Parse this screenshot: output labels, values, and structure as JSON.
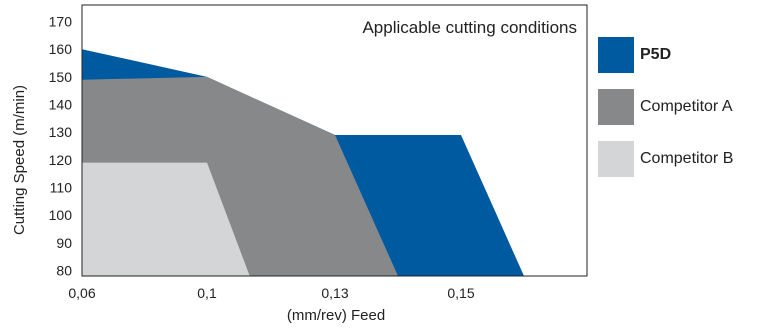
{
  "chart_data": {
    "type": "area",
    "title": "",
    "annotation": "Applicable cutting conditions",
    "xlabel": "(mm/rev) Feed",
    "ylabel": "Cutting Speed (m/min)",
    "x_ticks": [
      {
        "value": 0.06,
        "label": "0,06"
      },
      {
        "value": 0.1,
        "label": "0,1"
      },
      {
        "value": 0.13,
        "label": "0,13"
      },
      {
        "value": 0.15,
        "label": "0,15"
      }
    ],
    "y_ticks": [
      80,
      90,
      100,
      110,
      120,
      130,
      140,
      150,
      160,
      170
    ],
    "ylim": [
      78,
      176
    ],
    "grid": false,
    "legend_position": "right",
    "series": [
      {
        "name": "P5D",
        "color": "#005aa0",
        "points": [
          [
            0.06,
            78
          ],
          [
            0.06,
            160
          ],
          [
            0.1,
            150
          ],
          [
            0.13,
            129
          ],
          [
            0.15,
            129
          ],
          [
            0.16,
            78
          ]
        ]
      },
      {
        "name": "Competitor A",
        "color": "#87888a",
        "points": [
          [
            0.06,
            78
          ],
          [
            0.06,
            149
          ],
          [
            0.1,
            150
          ],
          [
            0.13,
            129
          ],
          [
            0.14,
            78
          ]
        ]
      },
      {
        "name": "Competitor B",
        "color": "#d4d5d7",
        "points": [
          [
            0.06,
            78
          ],
          [
            0.06,
            119
          ],
          [
            0.1,
            119
          ],
          [
            0.11,
            78
          ]
        ]
      }
    ]
  }
}
